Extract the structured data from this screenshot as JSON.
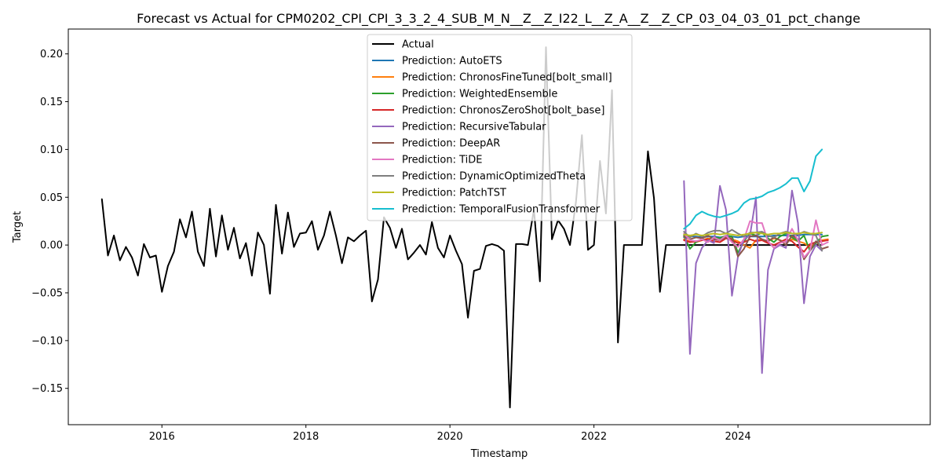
{
  "chart_data": {
    "type": "line",
    "title": "Forecast vs Actual for CPM0202_CPI_CPI_3_3_2_4_SUB_M_N__Z__Z_I22_L__Z_A__Z__Z_CP_03_04_03_01_pct_change",
    "xlabel": "Timestamp",
    "ylabel": "Target",
    "xlim": [
      2014.7,
      2026.67
    ],
    "ylim": [
      -0.188,
      0.226
    ],
    "x_ticks": [
      2016,
      2018,
      2020,
      2022,
      2024
    ],
    "x_tick_labels": [
      "2016",
      "2018",
      "2020",
      "2022",
      "2024"
    ],
    "y_ticks": [
      -0.15,
      -0.1,
      -0.05,
      0.0,
      0.05,
      0.1,
      0.15,
      0.2
    ],
    "y_tick_labels": [
      "−0.15",
      "−0.10",
      "−0.05",
      "0.00",
      "0.05",
      "0.10",
      "0.15",
      "0.20"
    ],
    "grid": false,
    "legend_position": "upper center",
    "series": [
      {
        "name": "Actual",
        "color": "#000000",
        "x_start": 2015.167,
        "step": 0.08333,
        "values": [
          0.048,
          -0.011,
          0.01,
          -0.016,
          -0.002,
          -0.013,
          -0.032,
          0.001,
          -0.013,
          -0.011,
          -0.049,
          -0.022,
          -0.007,
          0.027,
          0.008,
          0.035,
          -0.007,
          -0.022,
          0.038,
          -0.012,
          0.031,
          -0.005,
          0.018,
          -0.014,
          0.002,
          -0.032,
          0.013,
          0.0,
          -0.051,
          0.042,
          -0.009,
          0.034,
          -0.002,
          0.012,
          0.013,
          0.025,
          -0.005,
          0.01,
          0.035,
          0.01,
          -0.019,
          0.008,
          0.004,
          0.01,
          0.015,
          -0.059,
          -0.036,
          0.029,
          0.018,
          -0.003,
          0.017,
          -0.015,
          -0.008,
          0.0,
          -0.01,
          0.024,
          -0.003,
          -0.013,
          0.01,
          -0.006,
          -0.02,
          -0.076,
          -0.027,
          -0.025,
          -0.001,
          0.001,
          -0.001,
          -0.006,
          -0.17,
          0.001,
          0.001,
          0.0,
          0.037,
          -0.038,
          0.207,
          0.006,
          0.026,
          0.017,
          0.0,
          0.045,
          0.115,
          -0.005,
          0.0,
          0.088,
          0.033,
          0.162,
          -0.102,
          0.0,
          0.0,
          0.0,
          0.0,
          0.098,
          0.049,
          -0.049,
          0.0,
          0.0,
          0.0,
          0.0,
          0.0,
          0.0,
          0.0,
          0.0,
          0.0,
          0.0,
          0.0,
          0.0,
          0.0,
          0.0,
          0.0,
          0.0,
          0.0,
          0.0,
          0.0,
          0.0,
          0.0,
          0.0,
          0.0,
          0.0,
          0.0,
          0.0,
          0.0
        ]
      },
      {
        "name": "Prediction: AutoETS",
        "color": "#1f77b4",
        "x_start": 2023.25,
        "step": 0.08333,
        "values": [
          0.008,
          0.009,
          0.009,
          0.008,
          0.009,
          0.009,
          0.008,
          0.009,
          0.009,
          0.008,
          0.009,
          0.009,
          0.009,
          0.009,
          0.009,
          0.01,
          0.01,
          0.01,
          0.01,
          0.01,
          0.011,
          0.011,
          0.011,
          0.011
        ]
      },
      {
        "name": "Prediction: ChronosFineTuned[bolt_small]",
        "color": "#ff7f0e",
        "x_start": 2023.25,
        "step": 0.08333,
        "values": [
          0.006,
          0.004,
          0.003,
          0.005,
          0.007,
          0.006,
          0.005,
          0.008,
          0.006,
          0.004,
          0.0,
          -0.003,
          0.005,
          0.006,
          0.004,
          0.007,
          0.005,
          0.003,
          0.006,
          0.004,
          0.002,
          -0.002,
          0.003,
          0.005,
          0.006
        ]
      },
      {
        "name": "Prediction: WeightedEnsemble",
        "color": "#2ca02c",
        "x_start": 2023.25,
        "step": 0.08333,
        "values": [
          0.01,
          -0.004,
          0.003,
          0.006,
          0.005,
          0.008,
          0.007,
          0.01,
          0.009,
          -0.008,
          0.004,
          0.012,
          0.01,
          0.013,
          0.007,
          0.003,
          0.009,
          0.012,
          0.008,
          0.004,
          0.01,
          -0.006,
          0.002,
          0.009,
          0.01
        ]
      },
      {
        "name": "Prediction: ChronosZeroShot[bolt_base]",
        "color": "#d62728",
        "x_start": 2023.25,
        "step": 0.08333,
        "values": [
          0.005,
          0.003,
          0.004,
          0.005,
          0.006,
          0.004,
          0.003,
          0.007,
          0.005,
          0.002,
          0.003,
          0.006,
          0.004,
          0.005,
          0.002,
          0.0,
          0.003,
          0.006,
          0.004,
          -0.002,
          -0.007,
          0.001,
          0.003,
          0.004,
          0.005
        ]
      },
      {
        "name": "Prediction: RecursiveTabular",
        "color": "#9467bd",
        "x_start": 2023.25,
        "step": 0.08333,
        "values": [
          0.067,
          -0.114,
          -0.019,
          -0.003,
          0.005,
          0.002,
          0.062,
          0.037,
          -0.053,
          -0.012,
          0.006,
          0.01,
          0.05,
          -0.134,
          -0.026,
          -0.004,
          0.0,
          -0.003,
          0.057,
          0.023,
          -0.061,
          -0.012,
          0.0,
          -0.006
        ]
      },
      {
        "name": "Prediction: DeepAR",
        "color": "#8c564b",
        "x_start": 2023.25,
        "step": 0.08333,
        "values": [
          0.009,
          0.006,
          0.008,
          0.007,
          0.01,
          0.006,
          0.005,
          0.008,
          0.007,
          -0.012,
          -0.004,
          0.009,
          0.01,
          0.006,
          0.004,
          0.008,
          0.005,
          0.0,
          0.01,
          0.006,
          -0.015,
          -0.006,
          0.004,
          -0.004,
          -0.002
        ]
      },
      {
        "name": "Prediction: TiDE",
        "color": "#e377c2",
        "x_start": 2023.25,
        "step": 0.08333,
        "values": [
          0.012,
          0.005,
          0.004,
          0.006,
          0.003,
          0.008,
          0.005,
          0.01,
          0.003,
          -0.002,
          0.006,
          0.025,
          0.023,
          0.023,
          0.004,
          -0.003,
          0.002,
          0.004,
          0.017,
          0.005,
          -0.013,
          -0.006,
          0.026,
          0.0,
          0.003
        ]
      },
      {
        "name": "Prediction: DynamicOptimizedTheta",
        "color": "#7f7f7f",
        "x_start": 2023.25,
        "step": 0.08333,
        "values": [
          0.014,
          0.008,
          0.012,
          0.009,
          0.013,
          0.015,
          0.015,
          0.012,
          0.016,
          0.012,
          0.009,
          0.013,
          0.013,
          0.014,
          0.01,
          0.008,
          0.012,
          0.014,
          0.012,
          0.011,
          0.014,
          0.012,
          0.01,
          -0.006
        ]
      },
      {
        "name": "Prediction: PatchTST",
        "color": "#bcbd22",
        "x_start": 2023.25,
        "step": 0.08333,
        "values": [
          0.011,
          0.01,
          0.011,
          0.01,
          0.011,
          0.012,
          0.011,
          0.012,
          0.011,
          0.01,
          0.011,
          0.012,
          0.013,
          0.012,
          0.011,
          0.012,
          0.012,
          0.013,
          0.012,
          0.012,
          0.013,
          0.012,
          0.012,
          0.013
        ]
      },
      {
        "name": "Prediction: TemporalFusionTransformer",
        "color": "#17becf",
        "x_start": 2023.25,
        "step": 0.08333,
        "values": [
          0.017,
          0.022,
          0.031,
          0.035,
          0.032,
          0.03,
          0.029,
          0.031,
          0.033,
          0.036,
          0.044,
          0.048,
          0.049,
          0.051,
          0.055,
          0.057,
          0.06,
          0.064,
          0.07,
          0.07,
          0.056,
          0.067,
          0.093,
          0.1
        ]
      }
    ]
  }
}
